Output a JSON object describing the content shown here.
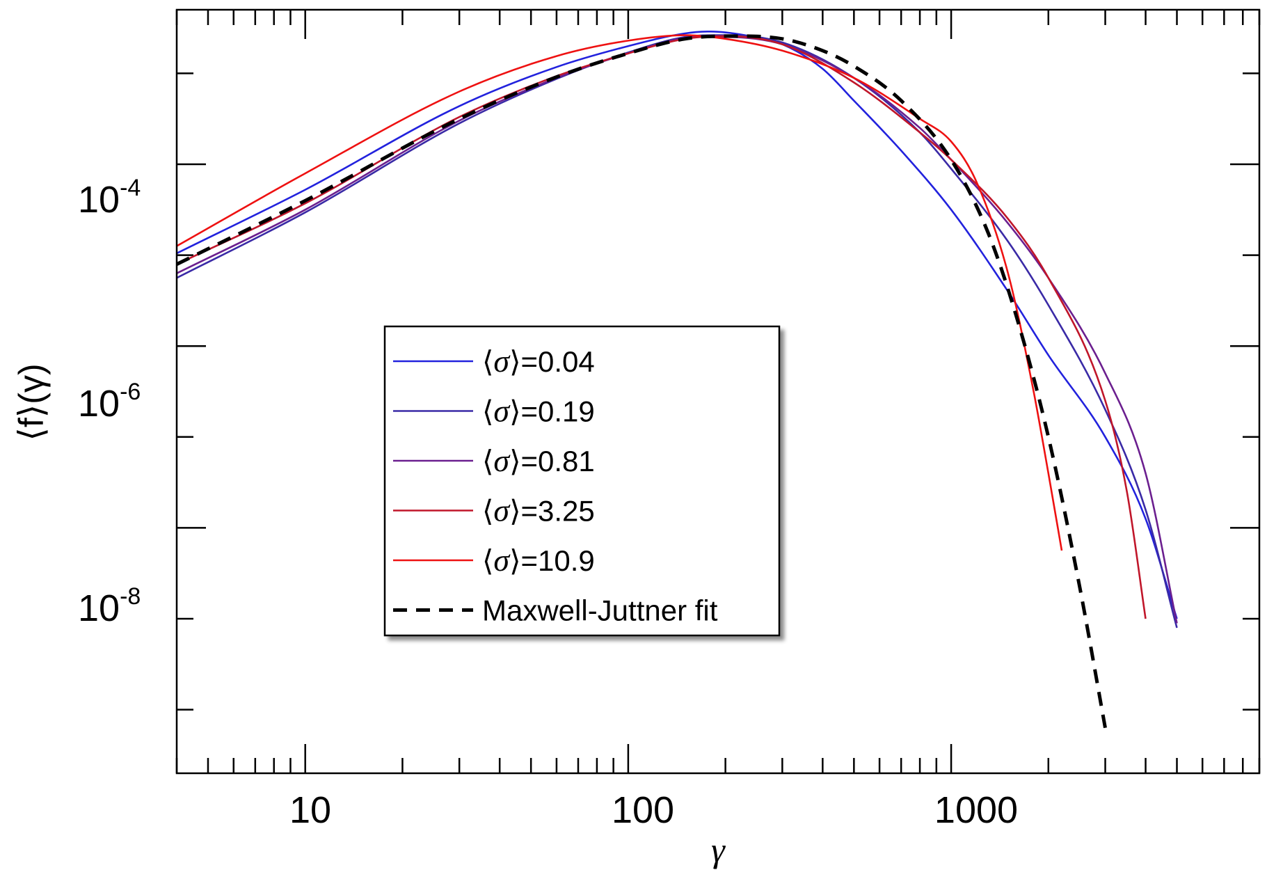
{
  "chart_data": {
    "type": "line",
    "title": "",
    "xlabel": "γ",
    "ylabel": "⟨f⟩(γ)",
    "x_scale": "log",
    "y_scale": "log",
    "xlim": [
      4,
      9000
    ],
    "ylim_exp": [
      -10.7,
      -2.3
    ],
    "x_ticks": [
      {
        "value": 10,
        "label": "10"
      },
      {
        "value": 100,
        "label": "100"
      },
      {
        "value": 1000,
        "label": "1000"
      }
    ],
    "y_ticks": [
      {
        "exp": -4,
        "base": "10",
        "sup": "-4"
      },
      {
        "exp": -6,
        "base": "10",
        "sup": "-6"
      },
      {
        "exp": -8,
        "base": "10",
        "sup": "-8"
      }
    ],
    "legend_position": "center-left",
    "series": [
      {
        "name": "⟨σ⟩=0.04",
        "sym": "σ",
        "value_text": "=0.04",
        "color": "#2222dd",
        "dash": false,
        "points": [
          [
            4,
            -4.98
          ],
          [
            10,
            -4.28
          ],
          [
            30,
            -3.36
          ],
          [
            60,
            -2.93
          ],
          [
            100,
            -2.7
          ],
          [
            150,
            -2.56
          ],
          [
            180,
            -2.54
          ],
          [
            230,
            -2.58
          ],
          [
            300,
            -2.68
          ],
          [
            400,
            -2.95
          ],
          [
            500,
            -3.3
          ],
          [
            700,
            -3.85
          ],
          [
            1000,
            -4.5
          ],
          [
            1500,
            -5.4
          ],
          [
            2000,
            -6.1
          ],
          [
            3000,
            -7.0
          ],
          [
            4000,
            -7.9
          ],
          [
            5000,
            -9.0
          ]
        ]
      },
      {
        "name": "⟨σ⟩=0.19",
        "sym": "σ",
        "value_text": "=0.19",
        "color": "#3a2aa6",
        "dash": false,
        "points": [
          [
            4,
            -5.25
          ],
          [
            10,
            -4.53
          ],
          [
            30,
            -3.55
          ],
          [
            60,
            -3.06
          ],
          [
            100,
            -2.77
          ],
          [
            150,
            -2.6
          ],
          [
            200,
            -2.58
          ],
          [
            300,
            -2.66
          ],
          [
            500,
            -3.05
          ],
          [
            800,
            -3.65
          ],
          [
            1000,
            -4.05
          ],
          [
            1500,
            -4.85
          ],
          [
            2000,
            -5.55
          ],
          [
            3000,
            -6.7
          ],
          [
            4000,
            -7.8
          ],
          [
            5000,
            -9.1
          ]
        ]
      },
      {
        "name": "⟨σ⟩=0.81",
        "sym": "σ",
        "value_text": "=0.81",
        "color": "#6b1f8f",
        "dash": false,
        "points": [
          [
            4,
            -5.2
          ],
          [
            10,
            -4.5
          ],
          [
            30,
            -3.52
          ],
          [
            60,
            -3.05
          ],
          [
            100,
            -2.78
          ],
          [
            150,
            -2.61
          ],
          [
            200,
            -2.6
          ],
          [
            300,
            -2.68
          ],
          [
            500,
            -3.05
          ],
          [
            800,
            -3.6
          ],
          [
            1000,
            -3.95
          ],
          [
            1500,
            -4.65
          ],
          [
            2000,
            -5.25
          ],
          [
            3000,
            -6.3
          ],
          [
            4000,
            -7.4
          ],
          [
            5000,
            -9.05
          ]
        ]
      },
      {
        "name": "⟨σ⟩=3.25",
        "sym": "σ",
        "value_text": "=3.25",
        "color": "#c0162a",
        "dash": false,
        "points": [
          [
            4,
            -5.1
          ],
          [
            10,
            -4.43
          ],
          [
            30,
            -3.48
          ],
          [
            60,
            -3.03
          ],
          [
            100,
            -2.78
          ],
          [
            150,
            -2.62
          ],
          [
            200,
            -2.59
          ],
          [
            300,
            -2.68
          ],
          [
            500,
            -3.1
          ],
          [
            800,
            -3.65
          ],
          [
            1000,
            -3.95
          ],
          [
            1500,
            -4.6
          ],
          [
            2000,
            -5.25
          ],
          [
            3000,
            -6.6
          ],
          [
            3500,
            -7.6
          ],
          [
            4000,
            -9.0
          ]
        ]
      },
      {
        "name": "⟨σ⟩=10.9",
        "sym": "σ",
        "value_text": "=10.9",
        "color": "#ee1111",
        "dash": false,
        "points": [
          [
            4,
            -4.9
          ],
          [
            10,
            -4.1
          ],
          [
            30,
            -3.2
          ],
          [
            60,
            -2.81
          ],
          [
            100,
            -2.64
          ],
          [
            150,
            -2.58
          ],
          [
            200,
            -2.62
          ],
          [
            300,
            -2.75
          ],
          [
            500,
            -3.05
          ],
          [
            800,
            -3.5
          ],
          [
            1000,
            -3.75
          ],
          [
            1200,
            -4.2
          ],
          [
            1500,
            -5.2
          ],
          [
            1800,
            -6.5
          ],
          [
            2000,
            -7.4
          ],
          [
            2200,
            -8.25
          ]
        ]
      },
      {
        "name": "Maxwell-Juttner fit",
        "sym": "",
        "value_text": "Maxwell-Juttner fit",
        "color": "#000000",
        "dash": true,
        "points": [
          [
            4,
            -5.1
          ],
          [
            10,
            -4.4
          ],
          [
            30,
            -3.5
          ],
          [
            60,
            -3.04
          ],
          [
            100,
            -2.78
          ],
          [
            150,
            -2.62
          ],
          [
            200,
            -2.59
          ],
          [
            300,
            -2.62
          ],
          [
            400,
            -2.75
          ],
          [
            500,
            -2.92
          ],
          [
            700,
            -3.3
          ],
          [
            1000,
            -3.95
          ],
          [
            1300,
            -4.75
          ],
          [
            1600,
            -5.7
          ],
          [
            2000,
            -7.0
          ],
          [
            2500,
            -8.65
          ],
          [
            3000,
            -10.2
          ]
        ]
      }
    ]
  }
}
